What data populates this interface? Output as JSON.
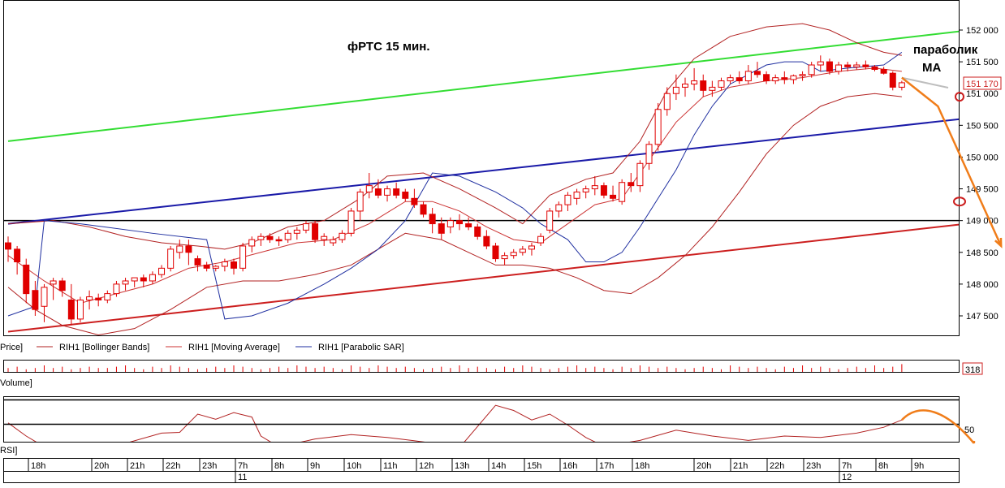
{
  "title": "фРТС   15 мин.",
  "annotations": {
    "line1": "параболик",
    "line2": "MA"
  },
  "last_price_label": "151 170",
  "legend": {
    "price": "Price]",
    "bollinger": "RIH1 [Bollinger Bands]",
    "moving_average": "RIH1 [Moving Average]",
    "parabolic": "RIH1 [Parabolic SAR]"
  },
  "volume_panel": {
    "label": "Volume]",
    "value_label": "318"
  },
  "rsi_panel": {
    "label": "RSI]",
    "level_label": "50"
  },
  "time_axis": {
    "hours": [
      "18h",
      "20h",
      "21h",
      "22h",
      "23h",
      "7h",
      "8h",
      "9h",
      "10h",
      "11h",
      "12h",
      "13h",
      "14h",
      "15h",
      "16h",
      "17h",
      "18h",
      "20h",
      "21h",
      "22h",
      "23h",
      "7h",
      "8h",
      "9h"
    ],
    "days": [
      "11",
      "12"
    ]
  },
  "colors": {
    "candle": "#e00000",
    "bollinger": "#b22222",
    "ma": "#cc3333",
    "sar": "#1f2fa0",
    "trend_green": "#33dd33",
    "trend_blue": "#1a1aa8",
    "trend_red": "#cc1f1f",
    "forecast": "#f07d1a"
  },
  "chart_data": {
    "type": "candlestick",
    "y_axis": {
      "ticks": [
        "152 000",
        "151 500",
        "151 000",
        "150 500",
        "150 000",
        "149 500",
        "149 000",
        "148 500",
        "148 000",
        "147 500"
      ],
      "ylim": [
        147250,
        152350
      ]
    },
    "horizontal_level": 149000,
    "candles": [
      [
        148650,
        148750,
        148350,
        148550
      ],
      [
        148550,
        148600,
        148150,
        148350
      ],
      [
        148300,
        148400,
        147700,
        147850
      ],
      [
        147900,
        148050,
        147500,
        147600
      ],
      [
        147650,
        148000,
        147400,
        147950
      ],
      [
        148000,
        148100,
        147750,
        148050
      ],
      [
        148050,
        148100,
        147800,
        147900
      ],
      [
        147750,
        148000,
        147350,
        147450
      ],
      [
        147450,
        147800,
        147400,
        147750
      ],
      [
        147750,
        147900,
        147600,
        147800
      ],
      [
        147780,
        147850,
        147650,
        147750
      ],
      [
        147750,
        147900,
        147700,
        147850
      ],
      [
        147850,
        148050,
        147800,
        148000
      ],
      [
        148000,
        148100,
        147900,
        148050
      ],
      [
        148050,
        148100,
        147950,
        148100
      ],
      [
        148100,
        148150,
        147950,
        148050
      ],
      [
        148050,
        148200,
        148000,
        148150
      ],
      [
        148150,
        148300,
        148100,
        148250
      ],
      [
        148250,
        148600,
        148200,
        148550
      ],
      [
        148500,
        148700,
        148400,
        148600
      ],
      [
        148600,
        148700,
        148300,
        148500
      ],
      [
        148400,
        148450,
        148200,
        148300
      ],
      [
        148300,
        148350,
        148200,
        148250
      ],
      [
        148250,
        148300,
        148200,
        148280
      ],
      [
        148280,
        148400,
        148200,
        148350
      ],
      [
        148350,
        148400,
        148150,
        148250
      ],
      [
        148250,
        148650,
        148200,
        148600
      ],
      [
        148600,
        148750,
        148500,
        148700
      ],
      [
        148700,
        148800,
        148600,
        148750
      ],
      [
        148750,
        148800,
        148650,
        148700
      ],
      [
        148700,
        148750,
        148600,
        148680
      ],
      [
        148700,
        148850,
        148650,
        148800
      ],
      [
        148800,
        148900,
        148700,
        148850
      ],
      [
        148850,
        149000,
        148800,
        148950
      ],
      [
        148950,
        149000,
        148650,
        148700
      ],
      [
        148700,
        148800,
        148600,
        148750
      ],
      [
        148650,
        148750,
        148600,
        148700
      ],
      [
        148700,
        148850,
        148650,
        148800
      ],
      [
        148800,
        149200,
        148750,
        149150
      ],
      [
        149150,
        149500,
        149000,
        149450
      ],
      [
        149450,
        149750,
        149350,
        149550
      ],
      [
        149500,
        149650,
        149350,
        149400
      ],
      [
        149400,
        149550,
        149300,
        149500
      ],
      [
        149500,
        149600,
        149350,
        149400
      ],
      [
        149450,
        149500,
        149300,
        149350
      ],
      [
        149350,
        149500,
        149200,
        149250
      ],
      [
        149250,
        149300,
        149050,
        149100
      ],
      [
        149100,
        149200,
        148800,
        148950
      ],
      [
        148950,
        149050,
        148700,
        148800
      ],
      [
        148900,
        149050,
        148800,
        149000
      ],
      [
        149000,
        149100,
        148850,
        148950
      ],
      [
        148950,
        149050,
        148850,
        148900
      ],
      [
        148900,
        148950,
        148700,
        148750
      ],
      [
        148750,
        148850,
        148550,
        148600
      ],
      [
        148600,
        148650,
        148350,
        148400
      ],
      [
        148400,
        148500,
        148300,
        148450
      ],
      [
        148450,
        148550,
        148400,
        148500
      ],
      [
        148500,
        148600,
        148450,
        148550
      ],
      [
        148550,
        148650,
        148450,
        148600
      ],
      [
        148650,
        148800,
        148600,
        148750
      ],
      [
        148850,
        149200,
        148800,
        149150
      ],
      [
        149150,
        149300,
        149050,
        149250
      ],
      [
        149250,
        149450,
        149150,
        149400
      ],
      [
        149350,
        149500,
        149250,
        149450
      ],
      [
        149450,
        149550,
        149350,
        149500
      ],
      [
        149500,
        149700,
        149400,
        149550
      ],
      [
        149550,
        149600,
        149350,
        149400
      ],
      [
        149400,
        149550,
        149300,
        149350
      ],
      [
        149300,
        149650,
        149250,
        149600
      ],
      [
        149600,
        149750,
        149450,
        149550
      ],
      [
        149550,
        149950,
        149450,
        149900
      ],
      [
        149900,
        150250,
        149800,
        150200
      ],
      [
        150200,
        150850,
        150100,
        150750
      ],
      [
        150750,
        151100,
        150650,
        151000
      ],
      [
        151000,
        151300,
        150900,
        151100
      ],
      [
        151100,
        151250,
        150950,
        151150
      ],
      [
        151150,
        151400,
        151050,
        151200
      ],
      [
        151200,
        151300,
        150950,
        151050
      ],
      [
        151050,
        151200,
        150950,
        151100
      ],
      [
        151100,
        151250,
        151050,
        151200
      ],
      [
        151200,
        151300,
        151150,
        151250
      ],
      [
        151250,
        151350,
        151150,
        151200
      ],
      [
        151200,
        151450,
        151150,
        151350
      ],
      [
        151350,
        151500,
        151250,
        151300
      ],
      [
        151300,
        151350,
        151150,
        151200
      ],
      [
        151200,
        151300,
        151150,
        151250
      ],
      [
        151250,
        151350,
        151150,
        151220
      ],
      [
        151220,
        151300,
        151150,
        151280
      ],
      [
        151280,
        151350,
        151200,
        151300
      ],
      [
        151300,
        151500,
        151250,
        151450
      ],
      [
        151450,
        151600,
        151350,
        151500
      ],
      [
        151500,
        151550,
        151300,
        151350
      ],
      [
        151350,
        151500,
        151300,
        151450
      ],
      [
        151450,
        151500,
        151350,
        151420
      ],
      [
        151420,
        151500,
        151380,
        151450
      ],
      [
        151450,
        151520,
        151380,
        151420
      ],
      [
        151420,
        151450,
        151350,
        151380
      ],
      [
        151380,
        151420,
        151300,
        151320
      ],
      [
        151320,
        151350,
        151050,
        151100
      ],
      [
        151100,
        151200,
        151050,
        151170
      ]
    ],
    "bollinger_upper": [
      [
        0,
        148950
      ],
      [
        5,
        149000
      ],
      [
        9,
        148900
      ],
      [
        13,
        148750
      ],
      [
        17,
        148650
      ],
      [
        21,
        148600
      ],
      [
        24,
        148550
      ],
      [
        27,
        148650
      ],
      [
        31,
        148900
      ],
      [
        35,
        149000
      ],
      [
        39,
        149350
      ],
      [
        42,
        149700
      ],
      [
        46,
        149750
      ],
      [
        50,
        149500
      ],
      [
        54,
        149200
      ],
      [
        57,
        148950
      ],
      [
        60,
        149400
      ],
      [
        64,
        149650
      ],
      [
        67,
        149750
      ],
      [
        70,
        150250
      ],
      [
        73,
        151050
      ],
      [
        76,
        151550
      ],
      [
        80,
        151900
      ],
      [
        84,
        152050
      ],
      [
        88,
        152100
      ],
      [
        91,
        152000
      ],
      [
        94,
        151800
      ],
      [
        97,
        151650
      ],
      [
        99,
        151600
      ]
    ],
    "bollinger_lower": [
      [
        0,
        147950
      ],
      [
        3,
        147600
      ],
      [
        6,
        147350
      ],
      [
        10,
        147200
      ],
      [
        14,
        147300
      ],
      [
        18,
        147600
      ],
      [
        22,
        147950
      ],
      [
        26,
        148050
      ],
      [
        30,
        148050
      ],
      [
        34,
        148150
      ],
      [
        38,
        148300
      ],
      [
        41,
        148550
      ],
      [
        44,
        148800
      ],
      [
        48,
        148700
      ],
      [
        51,
        148500
      ],
      [
        54,
        148300
      ],
      [
        57,
        148300
      ],
      [
        60,
        148250
      ],
      [
        63,
        148100
      ],
      [
        66,
        147900
      ],
      [
        69,
        147850
      ],
      [
        72,
        148100
      ],
      [
        75,
        148450
      ],
      [
        78,
        148900
      ],
      [
        81,
        149450
      ],
      [
        84,
        150050
      ],
      [
        87,
        150500
      ],
      [
        90,
        150800
      ],
      [
        93,
        150950
      ],
      [
        96,
        151000
      ],
      [
        99,
        150950
      ]
    ],
    "moving_average": [
      [
        0,
        148450
      ],
      [
        4,
        148050
      ],
      [
        8,
        147700
      ],
      [
        12,
        147850
      ],
      [
        16,
        148000
      ],
      [
        20,
        148250
      ],
      [
        24,
        148350
      ],
      [
        28,
        148500
      ],
      [
        32,
        148650
      ],
      [
        36,
        148700
      ],
      [
        40,
        148950
      ],
      [
        44,
        149300
      ],
      [
        47,
        149300
      ],
      [
        50,
        149150
      ],
      [
        53,
        148900
      ],
      [
        56,
        148700
      ],
      [
        59,
        148650
      ],
      [
        62,
        148950
      ],
      [
        65,
        149250
      ],
      [
        68,
        149350
      ],
      [
        71,
        149950
      ],
      [
        74,
        150550
      ],
      [
        77,
        150950
      ],
      [
        80,
        151100
      ],
      [
        84,
        151200
      ],
      [
        88,
        151250
      ],
      [
        92,
        151350
      ],
      [
        96,
        151400
      ],
      [
        99,
        151350
      ]
    ],
    "parabolic_sar": [
      [
        0,
        147500
      ],
      [
        3,
        147650
      ],
      [
        4,
        149000
      ],
      [
        8,
        148950
      ],
      [
        16,
        148800
      ],
      [
        22,
        148700
      ],
      [
        24,
        147450
      ],
      [
        27,
        147500
      ],
      [
        31,
        147700
      ],
      [
        35,
        148000
      ],
      [
        38,
        148250
      ],
      [
        41,
        148550
      ],
      [
        44,
        149000
      ],
      [
        47,
        149750
      ],
      [
        50,
        149700
      ],
      [
        54,
        149450
      ],
      [
        57,
        149200
      ],
      [
        59,
        148950
      ],
      [
        62,
        148700
      ],
      [
        64,
        148350
      ],
      [
        66,
        148350
      ],
      [
        68,
        148500
      ],
      [
        70,
        148900
      ],
      [
        72,
        149350
      ],
      [
        74,
        149800
      ],
      [
        76,
        150350
      ],
      [
        78,
        150800
      ],
      [
        80,
        151150
      ],
      [
        82,
        151300
      ],
      [
        84,
        151450
      ],
      [
        86,
        151500
      ],
      [
        88,
        151500
      ],
      [
        90,
        151350
      ],
      [
        93,
        151400
      ],
      [
        97,
        151450
      ],
      [
        99,
        151650
      ]
    ],
    "trendlines": {
      "green": [
        [
          0,
          150250
        ],
        [
          128,
          152350
        ]
      ],
      "blue": [
        [
          0,
          148950
        ],
        [
          128,
          150950
        ]
      ],
      "red": [
        [
          0,
          147250
        ],
        [
          128,
          149300
        ]
      ]
    },
    "forecast_path": [
      [
        99,
        151250
      ],
      [
        103,
        150800
      ],
      [
        110,
        148600
      ]
    ],
    "volume": [
      3,
      4,
      2,
      3,
      5,
      3,
      4,
      2,
      3,
      4,
      3,
      3,
      4,
      5,
      3,
      2,
      4,
      3,
      5,
      4,
      3,
      2,
      3,
      4,
      3,
      5,
      4,
      3,
      2,
      3,
      4,
      3,
      5,
      4,
      3,
      4,
      3,
      2,
      5,
      4,
      3,
      5,
      4,
      3,
      4,
      3,
      2,
      3,
      4,
      3,
      5,
      3,
      4,
      3,
      2,
      4,
      3,
      5,
      4,
      3,
      2,
      3,
      4,
      5,
      3,
      4,
      3,
      2,
      4,
      3,
      5,
      4,
      3,
      4,
      3,
      2,
      3,
      4,
      3,
      2,
      5,
      4,
      3,
      4,
      3,
      2,
      4,
      3,
      5,
      3,
      4,
      3,
      2,
      3,
      4,
      3,
      5,
      3,
      4,
      6
    ],
    "rsi": [
      [
        0,
        58
      ],
      [
        2,
        40
      ],
      [
        5,
        18
      ],
      [
        9,
        10
      ],
      [
        13,
        30
      ],
      [
        17,
        44
      ],
      [
        19,
        45
      ],
      [
        21,
        70
      ],
      [
        23,
        63
      ],
      [
        25,
        72
      ],
      [
        27,
        66
      ],
      [
        28,
        40
      ],
      [
        30,
        25
      ],
      [
        34,
        36
      ],
      [
        38,
        42
      ],
      [
        42,
        38
      ],
      [
        46,
        32
      ],
      [
        50,
        24
      ],
      [
        54,
        82
      ],
      [
        56,
        75
      ],
      [
        58,
        62
      ],
      [
        60,
        70
      ],
      [
        62,
        55
      ],
      [
        64,
        38
      ],
      [
        66,
        26
      ],
      [
        70,
        34
      ],
      [
        74,
        48
      ],
      [
        78,
        40
      ],
      [
        82,
        34
      ],
      [
        86,
        40
      ],
      [
        90,
        38
      ],
      [
        94,
        44
      ],
      [
        97,
        52
      ],
      [
        99,
        62
      ]
    ],
    "rsi_forecast": [
      [
        99,
        62
      ],
      [
        101,
        72
      ],
      [
        104,
        64
      ],
      [
        107,
        30
      ]
    ]
  }
}
